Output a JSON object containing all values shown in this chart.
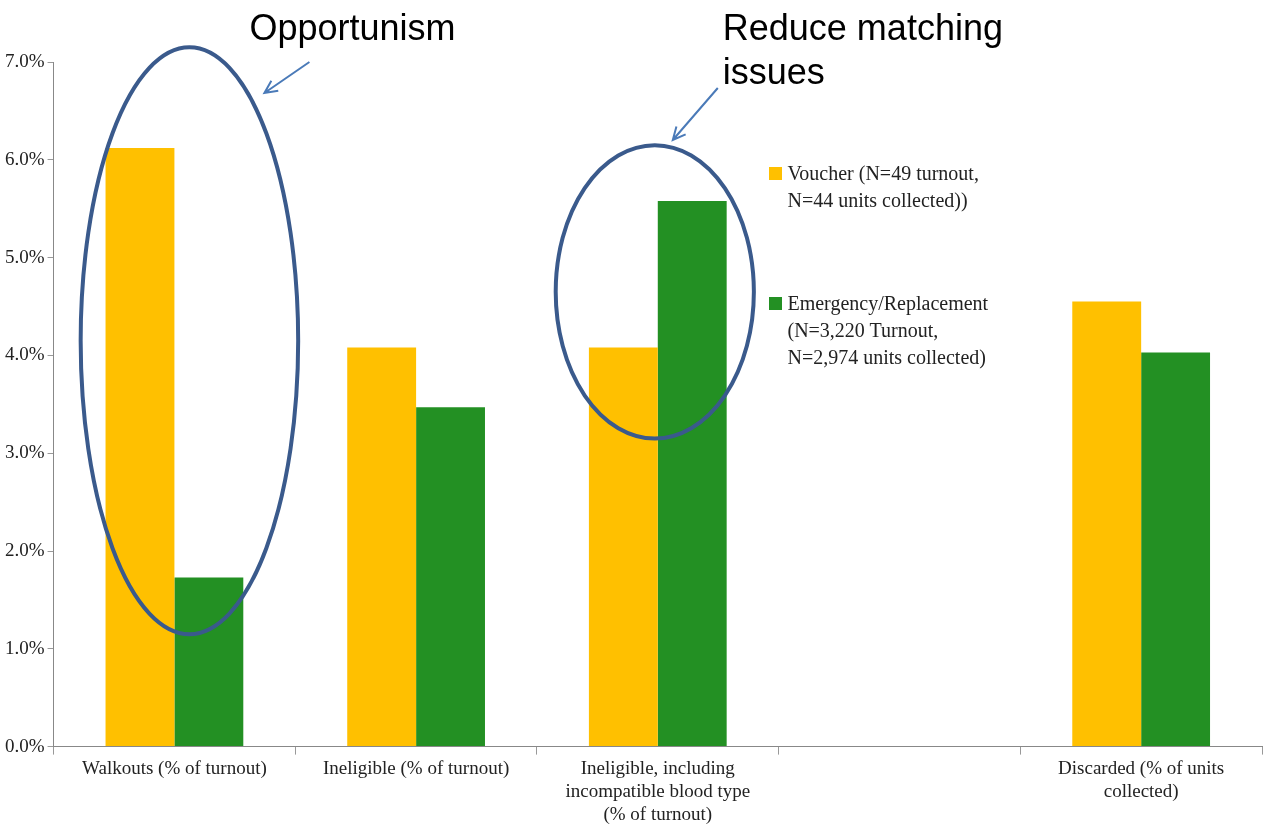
{
  "chart_data": {
    "type": "bar",
    "annotations": [
      "Opportunism",
      "Reduce matching issues"
    ],
    "categories": [
      "Walkouts (% of turnout)",
      "Ineligible (% of turnout)",
      "Ineligible, including incompatible blood type (% of turnout)",
      null,
      "Discarded (% of units collected)"
    ],
    "series": [
      {
        "name": "Voucher (N=49 turnout, N=44 units collected))",
        "color": "#ffc000",
        "values": [
          6.12,
          4.08,
          4.08,
          null,
          4.55
        ]
      },
      {
        "name": "Emergency/Replacement (N=3,220 Turnout, N=2,974 units collected)",
        "color": "#239023",
        "values": [
          1.73,
          3.47,
          5.58,
          null,
          4.03
        ]
      }
    ],
    "ylim": [
      0,
      7
    ],
    "yticks": [
      {
        "value": 0,
        "label": "0.0%"
      },
      {
        "value": 1,
        "label": "1.0%"
      },
      {
        "value": 2,
        "label": "2.0%"
      },
      {
        "value": 3,
        "label": "3.0%"
      },
      {
        "value": 4,
        "label": "4.0%"
      },
      {
        "value": 5,
        "label": "5.0%"
      },
      {
        "value": 6,
        "label": "6.0%"
      },
      {
        "value": 7,
        "label": "7.0%"
      }
    ],
    "grid": false,
    "legend": "right"
  }
}
